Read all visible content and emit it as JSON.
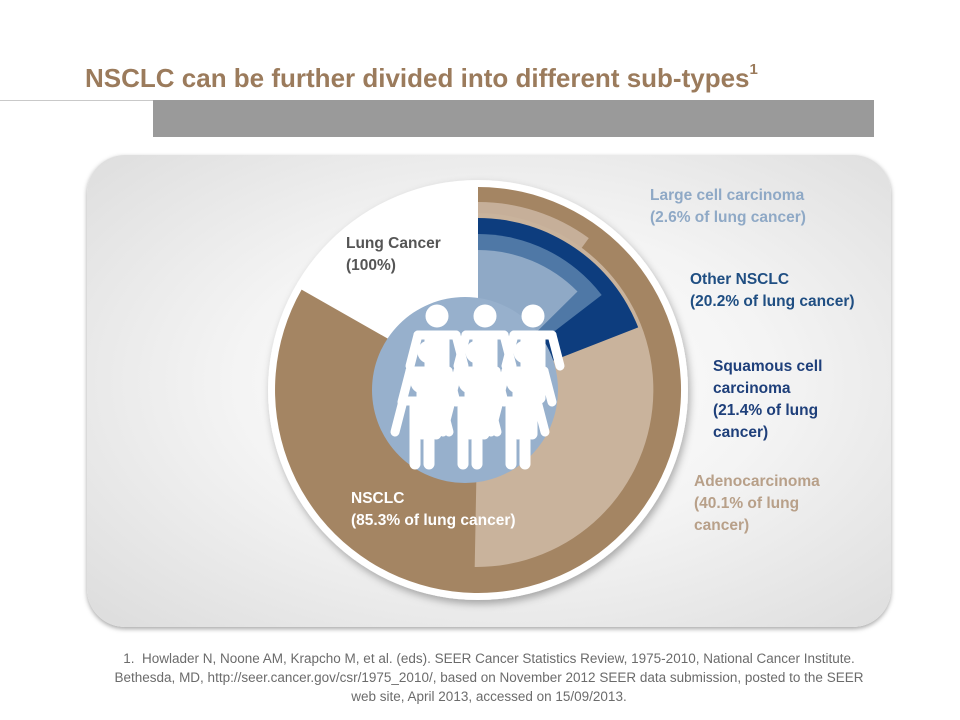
{
  "header": {
    "title": "NSCLC can be further divided into different sub-types",
    "title_superscript": "1"
  },
  "diagram": {
    "segments": [
      {
        "id": "lung-cancer",
        "label_lines": [
          "Lung Cancer",
          "(100%)"
        ],
        "percent": 100,
        "color": "#ffffff"
      },
      {
        "id": "nsclc",
        "label_lines": [
          "NSCLC",
          "(85.3% of lung cancer)"
        ],
        "percent": 85.3,
        "color": "#a48563"
      },
      {
        "id": "adenocarcinoma",
        "label_lines": [
          "Adenocarcinoma",
          "(40.1% of lung",
          "cancer)"
        ],
        "percent": 40.1,
        "color": "#c9b39c"
      },
      {
        "id": "squamous",
        "label_lines": [
          "Squamous cell",
          "carcinoma",
          "(21.4% of lung",
          "cancer)"
        ],
        "percent": 21.4,
        "color": "#4f78a6"
      },
      {
        "id": "other-nsclc",
        "label_lines": [
          "Other NSCLC",
          "(20.2% of lung cancer)"
        ],
        "percent": 20.2,
        "color": "#0d3d7e"
      },
      {
        "id": "large-cell",
        "label_lines": [
          "Large cell carcinoma",
          "(2.6% of lung cancer)"
        ],
        "percent": 2.6,
        "color": "#8fa9c6"
      }
    ],
    "center_circle_color": "#97b0cc",
    "people_icon": "people-group-icon"
  },
  "footnote": {
    "lines": [
      "1.  Howlader N, Noone AM, Krapcho M, et al. (eds). SEER Cancer Statistics Review, 1975-2010, National Cancer Institute.",
      "Bethesda, MD, http://seer.cancer.gov/csr/1975_2010/, based on November 2012 SEER data submission, posted to the SEER",
      "web site, April 2013, accessed on 15/09/2013."
    ]
  }
}
